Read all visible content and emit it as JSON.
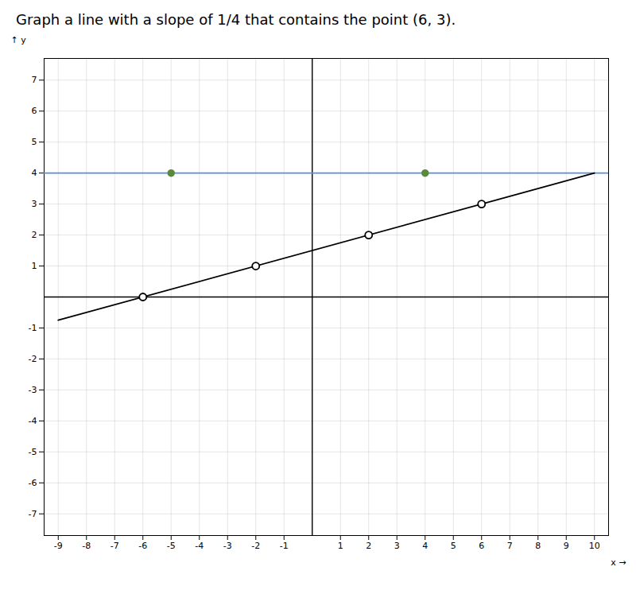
{
  "chart_data": {
    "type": "line",
    "title": "Graph a line with a slope of 1/4 that contains the point (6, 3).",
    "x_label": "x",
    "y_label": "y",
    "xlim": [
      -9.5,
      10.5
    ],
    "xticks": [
      -9,
      -8,
      -7,
      -6,
      -5,
      -4,
      -3,
      -2,
      -1,
      1,
      2,
      3,
      4,
      5,
      6,
      7,
      8,
      9,
      10
    ],
    "ylim": [
      -7.7,
      7.7
    ],
    "yticks": [
      -7,
      -6,
      -5,
      -4,
      -3,
      -2,
      -1,
      1,
      2,
      3,
      4,
      5,
      6,
      7
    ],
    "grid": true,
    "series": [
      {
        "type": "rule",
        "color": "#5b8dd9",
        "values": [
          4
        ]
      },
      {
        "type": "scatter",
        "marker": "filled",
        "color": "#5a8a3c",
        "x": [
          -5,
          4
        ],
        "values": [
          4,
          4
        ]
      },
      {
        "type": "line",
        "color": "#000000",
        "x": [
          -9,
          10
        ],
        "values": [
          -0.75,
          4
        ]
      },
      {
        "type": "scatter",
        "marker": "open",
        "color": "#000000",
        "x": [
          -6,
          -2,
          2
        ],
        "values": [
          0,
          1,
          2
        ]
      },
      {
        "type": "scatter",
        "marker": "open",
        "color": "#000000",
        "x": [
          6
        ],
        "values": [
          3
        ]
      }
    ]
  }
}
